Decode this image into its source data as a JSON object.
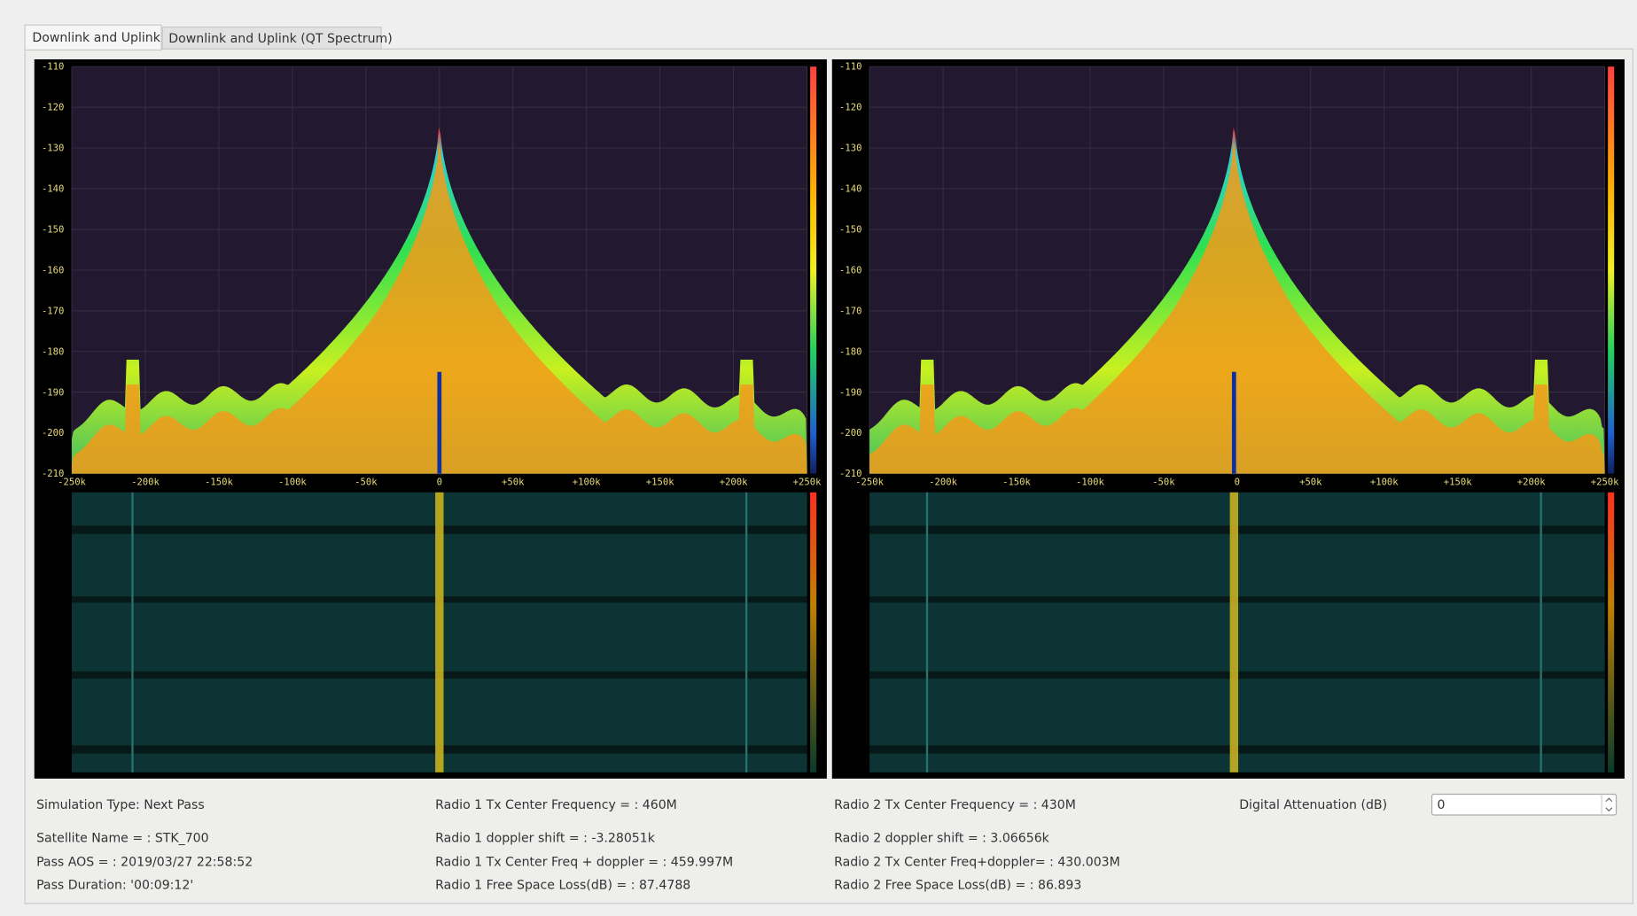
{
  "tabs": [
    "Downlink and  Uplink",
    "Downlink and Uplink (QT Spectrum)"
  ],
  "panels": [
    {
      "yticks": [
        "-110",
        "-120",
        "-130",
        "-140",
        "-150",
        "-160",
        "-170",
        "-180",
        "-190",
        "-200",
        "-210"
      ],
      "xticks": [
        "-250k",
        "-200k",
        "-150k",
        "-100k",
        "-50k",
        "0",
        "+50k",
        "+100k",
        "+150k",
        "+200k",
        "+250k"
      ]
    },
    {
      "yticks": [
        "-110",
        "-120",
        "-130",
        "-140",
        "-150",
        "-160",
        "-170",
        "-180",
        "-190",
        "-200",
        "-210"
      ],
      "xticks": [
        "-250k",
        "-200k",
        "-150k",
        "-100k",
        "-50k",
        "0",
        "+50k",
        "+100k",
        "+150k",
        "+200k",
        "+250k"
      ]
    }
  ],
  "info": [
    [
      "Simulation Type: Next Pass",
      "Satellite Name = : STK_700",
      "Pass AOS = : 2019/03/27 22:58:52",
      "Pass Duration: '00:09:12'"
    ],
    [
      "Radio 1 Tx Center Frequency = : 460M",
      "Radio 1 doppler shift = : -3.28051k",
      "Radio 1 Tx Center Freq + doppler = : 459.997M",
      "Radio 1  Free Space Loss(dB) = : 87.4788"
    ],
    [
      "Radio 2  Tx Center Frequency = : 430M",
      "Radio 2 doppler shift = : 3.06656k",
      "Radio 2 Tx Center Freq+doppler= : 430.003M",
      "Radio 2  Free Space Loss(dB) = : 86.893"
    ]
  ],
  "attenuation": {
    "label": "Digital Attenuation (dB)",
    "value": "0"
  }
}
